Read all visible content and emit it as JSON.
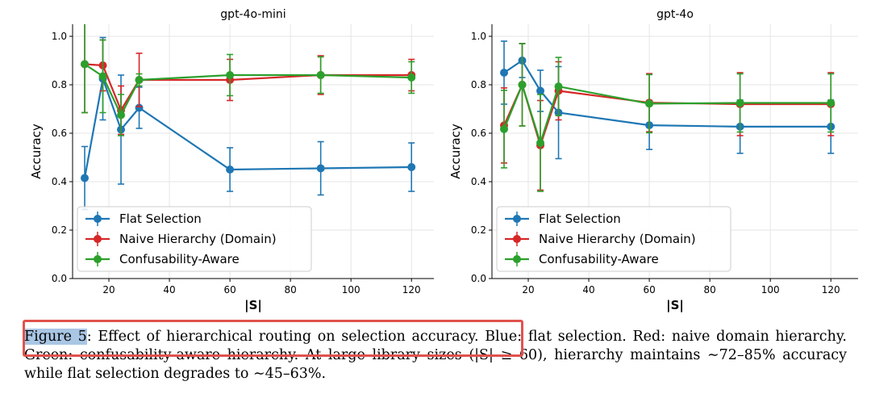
{
  "chart_data": [
    {
      "type": "line",
      "title": "gpt-4o-mini",
      "xlabel": "|S|",
      "ylabel": "Accuracy",
      "xlim": [
        8,
        129
      ],
      "ylim": [
        0,
        1.05
      ],
      "xticks": [
        20,
        40,
        60,
        80,
        100,
        120
      ],
      "yticks": [
        0.0,
        0.2,
        0.4,
        0.6,
        0.8,
        1.0
      ],
      "x": [
        12,
        18,
        24,
        30,
        60,
        90,
        120
      ],
      "grid": true,
      "legend_position": "lower-left",
      "series": [
        {
          "name": "Flat Selection",
          "color": "#1f77b4",
          "values": [
            0.415,
            0.825,
            0.615,
            0.705,
            0.45,
            0.455,
            0.46
          ],
          "err": [
            0.13,
            0.17,
            0.225,
            0.085,
            0.09,
            0.11,
            0.1
          ]
        },
        {
          "name": "Naive Hierarchy (Domain)",
          "color": "#d62728",
          "values": [
            0.885,
            0.88,
            0.695,
            0.82,
            0.82,
            0.84,
            0.84
          ],
          "err": [
            0.2,
            0.105,
            0.1,
            0.11,
            0.085,
            0.08,
            0.065
          ]
        },
        {
          "name": "Confusability-Aware",
          "color": "#2ca02c",
          "values": [
            0.885,
            0.835,
            0.675,
            0.82,
            0.84,
            0.84,
            0.83
          ],
          "err": [
            0.2,
            0.15,
            0.085,
            0.025,
            0.085,
            0.075,
            0.065
          ]
        }
      ]
    },
    {
      "type": "line",
      "title": "gpt-4o",
      "xlabel": "|S|",
      "ylabel": "Accuracy",
      "xlim": [
        8,
        129
      ],
      "ylim": [
        0,
        1.05
      ],
      "xticks": [
        20,
        40,
        60,
        80,
        100,
        120
      ],
      "yticks": [
        0.0,
        0.2,
        0.4,
        0.6,
        0.8,
        1.0
      ],
      "x": [
        12,
        18,
        24,
        30,
        60,
        90,
        120
      ],
      "grid": true,
      "legend_position": "lower-left",
      "series": [
        {
          "name": "Flat Selection",
          "color": "#1f77b4",
          "values": [
            0.85,
            0.9,
            0.775,
            0.685,
            0.633,
            0.627,
            0.627
          ],
          "err": [
            0.13,
            0.07,
            0.085,
            0.19,
            0.1,
            0.11,
            0.11
          ]
        },
        {
          "name": "Naive Hierarchy (Domain)",
          "color": "#d62728",
          "values": [
            0.632,
            0.8,
            0.55,
            0.775,
            0.726,
            0.72,
            0.72
          ],
          "err": [
            0.155,
            0.17,
            0.185,
            0.12,
            0.12,
            0.13,
            0.13
          ]
        },
        {
          "name": "Confusability-Aware",
          "color": "#2ca02c",
          "values": [
            0.617,
            0.8,
            0.56,
            0.793,
            0.722,
            0.725,
            0.725
          ],
          "err": [
            0.16,
            0.17,
            0.2,
            0.12,
            0.12,
            0.12,
            0.12
          ]
        }
      ]
    }
  ],
  "caption": {
    "label": "Figure 5",
    "text": ": Effect of hierarchical routing on selection accuracy. Blue: flat selection. Red: naive domain hierarchy. Green: confusability-aware hierarchy. At large library sizes (|S| ≥ 60), hierarchy maintains ∼72–85% accuracy while flat selection degrades to ∼45–63%."
  }
}
